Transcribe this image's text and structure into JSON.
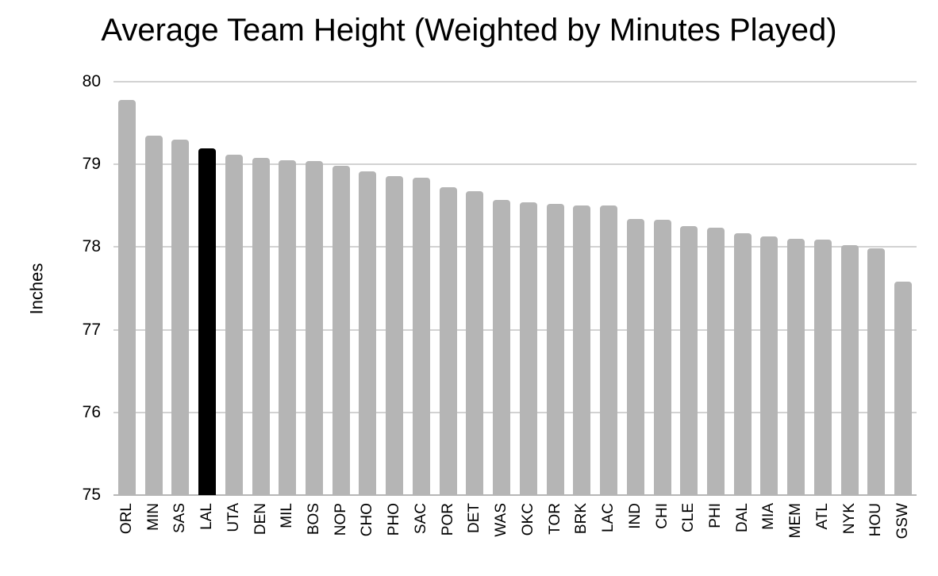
{
  "chart_data": {
    "type": "bar",
    "title": "Average Team Height (Weighted by Minutes Played)",
    "ylabel": "Inches",
    "xlabel": "",
    "ylim": [
      75,
      80
    ],
    "yticks": [
      75,
      76,
      77,
      78,
      79,
      80
    ],
    "grid": true,
    "legend_position": "none",
    "categories": [
      "ORL",
      "MIN",
      "SAS",
      "LAL",
      "UTA",
      "DEN",
      "MIL",
      "BOS",
      "NOP",
      "CHO",
      "PHO",
      "SAC",
      "POR",
      "DET",
      "WAS",
      "OKC",
      "TOR",
      "BRK",
      "LAC",
      "IND",
      "CHI",
      "CLE",
      "PHI",
      "DAL",
      "MIA",
      "MEM",
      "ATL",
      "NYK",
      "HOU",
      "GSW"
    ],
    "values": [
      79.78,
      79.35,
      79.3,
      79.19,
      79.12,
      79.08,
      79.05,
      79.04,
      78.98,
      78.92,
      78.86,
      78.84,
      78.72,
      78.68,
      78.57,
      78.54,
      78.52,
      78.5,
      78.5,
      78.34,
      78.33,
      78.25,
      78.23,
      78.17,
      78.13,
      78.1,
      78.09,
      78.02,
      77.98,
      77.58
    ],
    "highlighted_category": "LAL",
    "colors": {
      "bar": "#b5b5b5",
      "highlight": "#000000",
      "gridline": "#d2d2d2",
      "axis_line": "#b7b7b7",
      "background": "#ffffff",
      "text": "#000000"
    }
  }
}
